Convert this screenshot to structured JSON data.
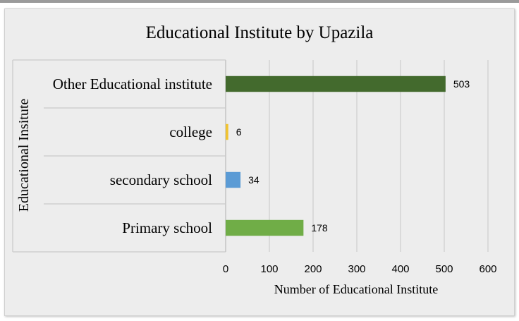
{
  "chart_data": {
    "type": "bar",
    "orientation": "horizontal",
    "title": "Educational Institute by Upazila",
    "xlabel": "Number of Educational Institute",
    "ylabel": "Educational Insitute",
    "xlim": [
      0,
      600
    ],
    "xticks": [
      0,
      100,
      200,
      300,
      400,
      500,
      600
    ],
    "grid": true,
    "categories": [
      "Other Educational institute",
      "college",
      "secondary school",
      "Primary school"
    ],
    "values": [
      503,
      6,
      34,
      178
    ],
    "colors": [
      "#436a2d",
      "#f0c330",
      "#5b9bd5",
      "#70ad47"
    ]
  }
}
